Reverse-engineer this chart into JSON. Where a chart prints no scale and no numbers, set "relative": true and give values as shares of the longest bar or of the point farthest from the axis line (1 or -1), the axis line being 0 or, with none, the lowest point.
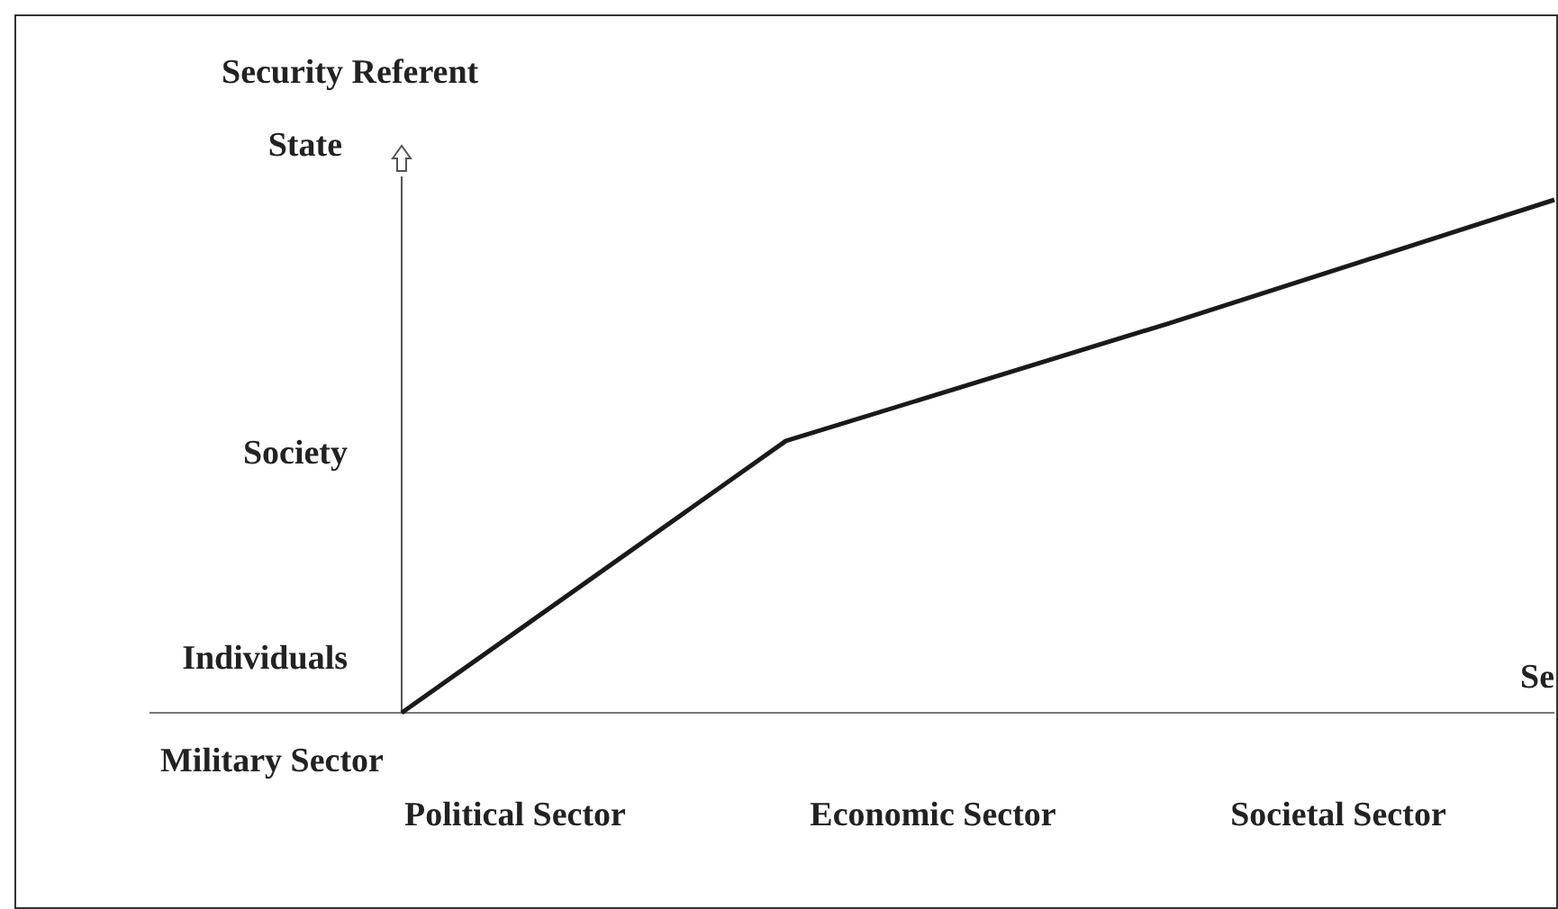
{
  "chart_data": {
    "type": "line",
    "ylabel": "Security Referent",
    "xlabel": "Se",
    "relative": true,
    "categories": [
      null,
      null,
      null,
      null
    ],
    "series": [
      {
        "color": "#1a1a1a",
        "values": [
          0,
          0.53,
          0.76,
          1
        ]
      }
    ],
    "annotations": [
      "Individuals",
      "Society",
      "State",
      "Military Sector",
      "Political Sector",
      "Economic Sector",
      "Societal Sector"
    ],
    "marker": "none",
    "line_style": "solid"
  }
}
